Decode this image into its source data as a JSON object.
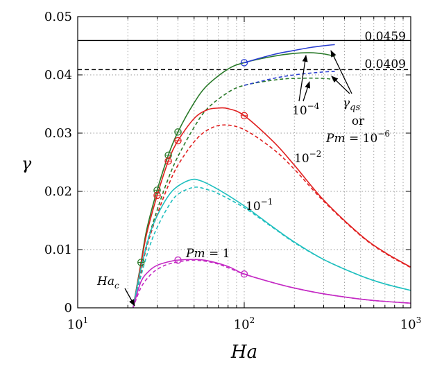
{
  "chart_data": {
    "type": "line",
    "x_scale": "log",
    "xlabel": "Ha",
    "ylabel": "γ",
    "xlim": [
      10,
      1000
    ],
    "ylim": [
      0,
      0.05
    ],
    "x_tick_labels": [
      {
        "value": 10,
        "base": "10",
        "exp": "1"
      },
      {
        "value": 100,
        "base": "10",
        "exp": "2"
      },
      {
        "value": 1000,
        "base": "10",
        "exp": "3"
      }
    ],
    "y_ticks": [
      0,
      0.01,
      0.02,
      0.03,
      0.04,
      0.05
    ],
    "y_tick_labels": [
      "0",
      "0.01",
      "0.02",
      "0.03",
      "0.04",
      "0.05"
    ],
    "reference_lines": [
      {
        "name": "solid-limit",
        "y": 0.0459,
        "label": "0.0459",
        "style": "solid"
      },
      {
        "name": "dashed-limit",
        "y": 0.0409,
        "label": "0.0409",
        "style": "dashed"
      }
    ],
    "series": [
      {
        "name": "Pm = 10^-4 (solid)",
        "color": "#2a7a2a",
        "dash": false,
        "points": [
          [
            21.5,
            0
          ],
          [
            24,
            0.0078
          ],
          [
            26,
            0.0135
          ],
          [
            30,
            0.0202
          ],
          [
            35,
            0.0262
          ],
          [
            40,
            0.0302
          ],
          [
            50,
            0.0352
          ],
          [
            60,
            0.0382
          ],
          [
            80,
            0.041
          ],
          [
            100,
            0.0421
          ],
          [
            150,
            0.0432
          ],
          [
            200,
            0.0437
          ],
          [
            250,
            0.0438
          ],
          [
            300,
            0.0436
          ],
          [
            350,
            0.0432
          ]
        ]
      },
      {
        "name": "Pm = 10^-4 (dashed)",
        "color": "#2a7a2a",
        "dash": true,
        "points": [
          [
            21.5,
            0
          ],
          [
            24,
            0.0065
          ],
          [
            26,
            0.011
          ],
          [
            30,
            0.0168
          ],
          [
            35,
            0.0222
          ],
          [
            40,
            0.026
          ],
          [
            50,
            0.031
          ],
          [
            60,
            0.0342
          ],
          [
            80,
            0.037
          ],
          [
            100,
            0.0382
          ],
          [
            150,
            0.0391
          ],
          [
            200,
            0.0394
          ],
          [
            300,
            0.0394
          ],
          [
            350,
            0.0391
          ]
        ]
      },
      {
        "name": "γqs (solid)",
        "color": "#2b3fd1",
        "dash": false,
        "points": [
          [
            100,
            0.0421
          ],
          [
            150,
            0.0435
          ],
          [
            200,
            0.0442
          ],
          [
            250,
            0.0447
          ],
          [
            300,
            0.045
          ],
          [
            350,
            0.0452
          ]
        ]
      },
      {
        "name": "γqs (dashed)",
        "color": "#2b3fd1",
        "dash": true,
        "points": [
          [
            100,
            0.0382
          ],
          [
            150,
            0.0394
          ],
          [
            200,
            0.04
          ],
          [
            250,
            0.0403
          ],
          [
            300,
            0.0405
          ],
          [
            350,
            0.0406
          ]
        ]
      },
      {
        "name": "Pm = 10^-2 (solid)",
        "color": "#e02020",
        "dash": false,
        "points": [
          [
            21.5,
            0
          ],
          [
            24,
            0.0075
          ],
          [
            26,
            0.0128
          ],
          [
            30,
            0.0193
          ],
          [
            35,
            0.0252
          ],
          [
            40,
            0.0287
          ],
          [
            50,
            0.0325
          ],
          [
            60,
            0.034
          ],
          [
            70,
            0.0343
          ],
          [
            80,
            0.0342
          ],
          [
            100,
            0.033
          ],
          [
            150,
            0.0285
          ],
          [
            200,
            0.0245
          ],
          [
            300,
            0.0185
          ],
          [
            500,
            0.0125
          ],
          [
            700,
            0.0095
          ],
          [
            1000,
            0.007
          ]
        ]
      },
      {
        "name": "Pm = 10^-2 (dashed)",
        "color": "#e02020",
        "dash": true,
        "points": [
          [
            21.5,
            0
          ],
          [
            24,
            0.0062
          ],
          [
            26,
            0.0105
          ],
          [
            30,
            0.016
          ],
          [
            35,
            0.021
          ],
          [
            40,
            0.0245
          ],
          [
            50,
            0.0285
          ],
          [
            60,
            0.0305
          ],
          [
            75,
            0.0314
          ],
          [
            100,
            0.0306
          ],
          [
            150,
            0.0272
          ],
          [
            200,
            0.0238
          ],
          [
            300,
            0.0183
          ],
          [
            500,
            0.0124
          ],
          [
            700,
            0.0094
          ],
          [
            1000,
            0.0069
          ]
        ]
      },
      {
        "name": "Pm = 10^-1 (solid)",
        "color": "#1fbfbf",
        "dash": false,
        "points": [
          [
            21.5,
            0
          ],
          [
            24,
            0.0068
          ],
          [
            27,
            0.0125
          ],
          [
            30,
            0.0158
          ],
          [
            35,
            0.0192
          ],
          [
            40,
            0.0209
          ],
          [
            48,
            0.022
          ],
          [
            55,
            0.0218
          ],
          [
            70,
            0.0203
          ],
          [
            100,
            0.0175
          ],
          [
            150,
            0.0138
          ],
          [
            200,
            0.0113
          ],
          [
            300,
            0.0083
          ],
          [
            500,
            0.0055
          ],
          [
            700,
            0.0041
          ],
          [
            1000,
            0.003
          ]
        ]
      },
      {
        "name": "Pm = 10^-1 (dashed)",
        "color": "#1fbfbf",
        "dash": true,
        "points": [
          [
            21.5,
            0
          ],
          [
            24,
            0.0055
          ],
          [
            27,
            0.0105
          ],
          [
            30,
            0.0138
          ],
          [
            35,
            0.0174
          ],
          [
            40,
            0.0195
          ],
          [
            50,
            0.0207
          ],
          [
            60,
            0.0203
          ],
          [
            70,
            0.0196
          ],
          [
            100,
            0.0172
          ],
          [
            150,
            0.0137
          ],
          [
            200,
            0.0112
          ],
          [
            300,
            0.0083
          ],
          [
            500,
            0.0055
          ],
          [
            700,
            0.0041
          ],
          [
            1000,
            0.003
          ]
        ]
      },
      {
        "name": "Pm = 1 (solid)",
        "color": "#c42ac4",
        "dash": false,
        "points": [
          [
            21.5,
            0
          ],
          [
            24,
            0.0045
          ],
          [
            27,
            0.0064
          ],
          [
            30,
            0.0073
          ],
          [
            35,
            0.0079
          ],
          [
            40,
            0.0082
          ],
          [
            50,
            0.0083
          ],
          [
            60,
            0.0081
          ],
          [
            80,
            0.0071
          ],
          [
            100,
            0.0058
          ],
          [
            150,
            0.0043
          ],
          [
            200,
            0.0034
          ],
          [
            300,
            0.0024
          ],
          [
            500,
            0.0015
          ],
          [
            700,
            0.0011
          ],
          [
            1000,
            0.0008
          ]
        ]
      },
      {
        "name": "Pm = 1 (dashed)",
        "color": "#c42ac4",
        "dash": true,
        "points": [
          [
            21.5,
            0
          ],
          [
            24,
            0.0035
          ],
          [
            27,
            0.0055
          ],
          [
            30,
            0.0066
          ],
          [
            35,
            0.0075
          ],
          [
            45,
            0.0081
          ],
          [
            55,
            0.0081
          ],
          [
            70,
            0.0075
          ],
          [
            100,
            0.0058
          ],
          [
            150,
            0.0043
          ],
          [
            200,
            0.0034
          ],
          [
            300,
            0.0024
          ],
          [
            500,
            0.0015
          ],
          [
            700,
            0.0011
          ],
          [
            1000,
            0.0008
          ]
        ]
      }
    ],
    "markers": [
      {
        "x": 24,
        "y": 0.0078,
        "color": "#2a7a2a"
      },
      {
        "x": 30,
        "y": 0.0202,
        "color": "#2a7a2a"
      },
      {
        "x": 35,
        "y": 0.0262,
        "color": "#2a7a2a"
      },
      {
        "x": 40,
        "y": 0.0302,
        "color": "#2a7a2a"
      },
      {
        "x": 100,
        "y": 0.0421,
        "color": "#2b3fd1"
      },
      {
        "x": 30,
        "y": 0.0193,
        "color": "#e02020"
      },
      {
        "x": 35,
        "y": 0.0252,
        "color": "#e02020"
      },
      {
        "x": 40,
        "y": 0.0287,
        "color": "#e02020"
      },
      {
        "x": 100,
        "y": 0.033,
        "color": "#e02020"
      },
      {
        "x": 40,
        "y": 0.0082,
        "color": "#c42ac4"
      },
      {
        "x": 100,
        "y": 0.0058,
        "color": "#c42ac4"
      }
    ],
    "annotations": {
      "pm4": {
        "base": "10",
        "exp": "−4"
      },
      "gamma_qs": {
        "main": "γ",
        "sub": "qs"
      },
      "or": "or",
      "pm6": {
        "lead": "Pm",
        "eq": " = ",
        "base": "10",
        "exp": "−6"
      },
      "pm2": {
        "base": "10",
        "exp": "−2"
      },
      "pm1": {
        "base": "10",
        "exp": "−1"
      },
      "pm0": {
        "lead": "Pm",
        "eq": " = 1"
      },
      "hac": {
        "main": "Ha",
        "sub": "c"
      }
    }
  }
}
